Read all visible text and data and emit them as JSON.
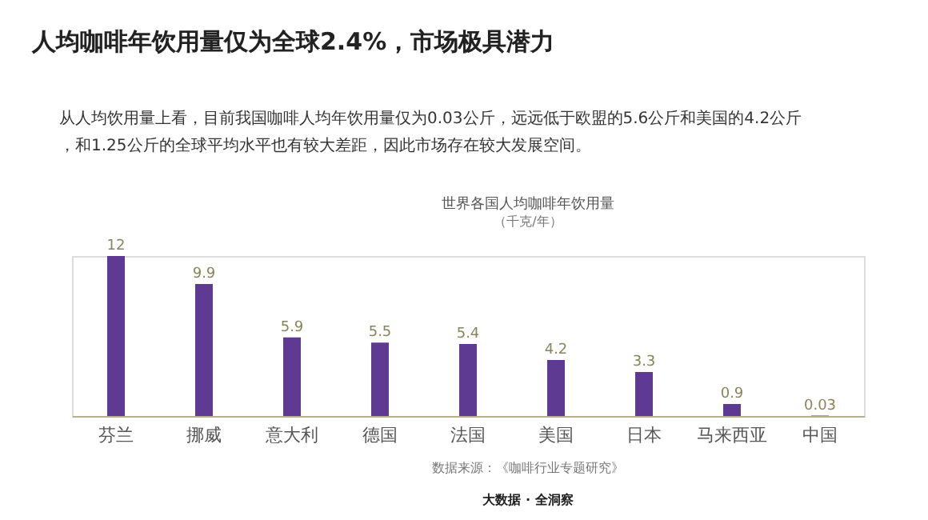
{
  "chart_data": {
    "type": "bar",
    "title": "人均咖啡年饮用量仅为全球2.4%，市场极具潜力",
    "subtitle": "从人均饮用量上看，目前我国咖啡人均年饮用量仅为0.03公斤，远远低于欧盟的5.6公斤和美国的4.2公斤，和1.25公斤的全球平均水平也有较大差距，因此市场存在较大发展空间。",
    "categories": [
      "芬兰",
      "挪威",
      "意大利",
      "德国",
      "法国",
      "美国",
      "日本",
      "马来西亚",
      "中国"
    ],
    "values": [
      12,
      9.9,
      5.9,
      5.5,
      5.4,
      4.2,
      3.3,
      0.9,
      0.03
    ],
    "color": "#5e3a92",
    "data_labels": true,
    "grid": false,
    "annotations": [
      "世界各国人均咖啡年饮用量",
      "（千克/年）",
      "数据来源：《咖啡行业专题研究》",
      "大数据 · 全洞察"
    ]
  }
}
